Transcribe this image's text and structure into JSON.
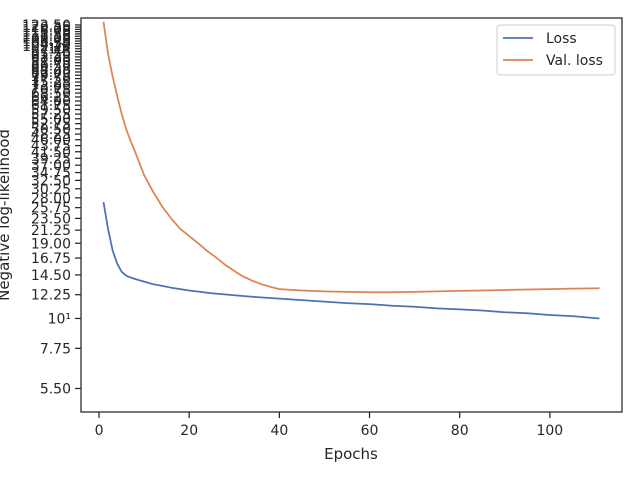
{
  "chart_data": {
    "type": "line",
    "title": "",
    "xlabel": "Epochs",
    "ylabel": "Negative log-likelihood",
    "yscale": "log",
    "xlim": [
      -4,
      116
    ],
    "ylim": [
      4.5,
      130
    ],
    "x_ticks": [
      0,
      20,
      40,
      60,
      80,
      100
    ],
    "x_tick_labels": [
      "0",
      "20",
      "40",
      "60",
      "80",
      "100"
    ],
    "y_ticks": [
      5.5,
      7.75,
      10,
      12.25,
      14.5,
      16.75,
      19,
      21.25,
      23.5,
      25.75,
      28,
      30.25,
      32.5,
      34.75,
      37,
      39.25,
      41.5,
      43.75,
      46,
      48.25,
      50.5,
      52.75,
      55,
      57.25,
      59.5,
      61.75,
      64,
      66.25,
      68.5,
      70.75,
      73,
      75.25,
      77.5,
      79.75,
      82,
      84.25,
      86.5,
      88.75,
      91,
      93.25,
      95.5,
      97.75,
      100,
      102.25,
      104.5,
      106.75,
      109,
      111.25,
      113.5,
      115.75,
      118,
      120.25,
      122.5
    ],
    "y_tick_labels": [
      "5.50",
      "7.75",
      "10¹",
      "12.25",
      "14.50",
      "16.75",
      "19.00",
      "21.25",
      "23.50",
      "25.75",
      "28.00",
      "30.25",
      "32.50",
      "34.75",
      "37.00",
      "39.25",
      "41.50",
      "43.75",
      "46.00",
      "48.25",
      "50.50",
      "52.75",
      "55.00",
      "57.25",
      "59.50",
      "61.75",
      "64.00",
      "66.25",
      "68.50",
      "70.75",
      "73.00",
      "75.25",
      "77.50",
      "79.75",
      "82.00",
      "84.25",
      "86.50",
      "88.75",
      "91.00",
      "93.25",
      "95.50",
      "97.75",
      "10²",
      "102.25",
      "104.50",
      "106.75",
      "109.00",
      "111.25",
      "113.50",
      "115.75",
      "118.00",
      "120.25",
      "122.50"
    ],
    "grid": false,
    "legend_position": "top-right",
    "series": [
      {
        "name": "Loss",
        "color": "#4c72b0",
        "x": [
          1,
          2,
          3,
          4,
          5,
          6,
          7,
          8,
          9,
          10,
          12,
          14,
          16,
          18,
          20,
          25,
          30,
          35,
          40,
          45,
          50,
          55,
          60,
          65,
          70,
          75,
          80,
          85,
          90,
          95,
          100,
          105,
          111
        ],
        "y": [
          27.0,
          21.5,
          17.9,
          16.0,
          14.9,
          14.4,
          14.2,
          14.0,
          13.85,
          13.7,
          13.4,
          13.2,
          13.0,
          12.85,
          12.7,
          12.4,
          12.2,
          12.0,
          11.85,
          11.7,
          11.55,
          11.4,
          11.3,
          11.15,
          11.05,
          10.9,
          10.8,
          10.7,
          10.55,
          10.45,
          10.3,
          10.2,
          10.0
        ]
      },
      {
        "name": "Val. loss",
        "color": "#dd8452",
        "x": [
          1,
          2,
          3,
          4,
          5,
          6,
          7,
          8,
          9,
          10,
          12,
          14,
          16,
          18,
          20,
          22,
          24,
          26,
          28,
          30,
          32,
          34,
          36,
          38,
          40,
          45,
          50,
          55,
          60,
          65,
          70,
          75,
          80,
          85,
          90,
          95,
          100,
          105,
          111
        ],
        "y": [
          126.0,
          96.0,
          79.0,
          67.0,
          57.5,
          50.5,
          45.5,
          41.5,
          37.5,
          34.0,
          29.5,
          26.0,
          23.5,
          21.5,
          20.2,
          19.0,
          17.8,
          16.8,
          15.8,
          15.0,
          14.3,
          13.8,
          13.4,
          13.1,
          12.85,
          12.7,
          12.6,
          12.55,
          12.5,
          12.5,
          12.55,
          12.6,
          12.65,
          12.7,
          12.75,
          12.8,
          12.85,
          12.9,
          12.95
        ]
      }
    ]
  }
}
